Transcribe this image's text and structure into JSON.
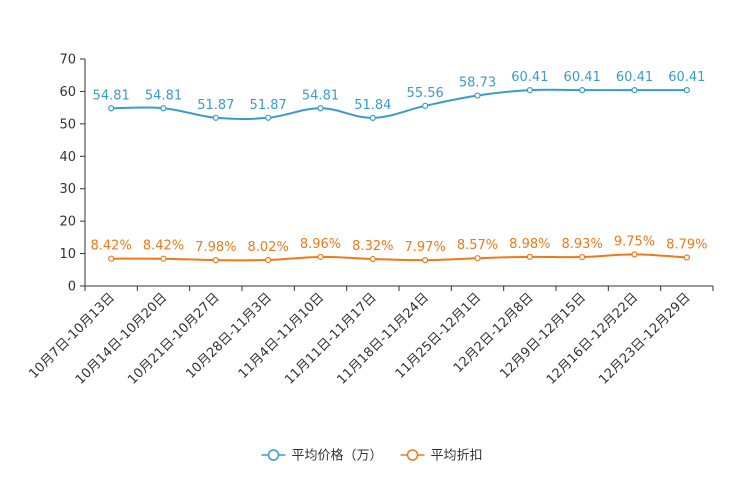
{
  "chart_data": {
    "type": "line",
    "title": "",
    "xlabel": "",
    "ylabel": "",
    "ylim": [
      0,
      70
    ],
    "yticks": [
      0,
      10,
      20,
      30,
      40,
      50,
      60,
      70
    ],
    "categories": [
      "10月7日-10月13日",
      "10月14日-10月20日",
      "10月21日-10月27日",
      "10月28日-11月3日",
      "11月4日-11月10日",
      "11月11日-11月17日",
      "11月18日-11月24日",
      "11月25日-12月1日",
      "12月2日-12月8日",
      "12月9日-12月15日",
      "12月16日-12月22日",
      "12月23日-12月29日"
    ],
    "series": [
      {
        "name": "平均价格（万）",
        "color": "#3a9bd0",
        "values": [
          54.81,
          54.81,
          51.87,
          51.87,
          54.81,
          51.84,
          55.56,
          58.73,
          60.41,
          60.41,
          60.41,
          60.41
        ],
        "labels": [
          "54.81",
          "54.81",
          "51.87",
          "51.87",
          "54.81",
          "51.84",
          "55.56",
          "58.73",
          "60.41",
          "60.41",
          "60.41",
          "60.41"
        ]
      },
      {
        "name": "平均折扣",
        "color": "#f07818",
        "values": [
          8.42,
          8.42,
          7.98,
          8.02,
          8.96,
          8.32,
          7.97,
          8.57,
          8.98,
          8.93,
          9.75,
          8.79
        ],
        "labels": [
          "8.42%",
          "8.42%",
          "7.98%",
          "8.02%",
          "8.96%",
          "8.32%",
          "7.97%",
          "8.57%",
          "8.98%",
          "8.93%",
          "9.75%",
          "8.79%"
        ]
      }
    ],
    "legend": "bottom-center",
    "grid": false
  }
}
